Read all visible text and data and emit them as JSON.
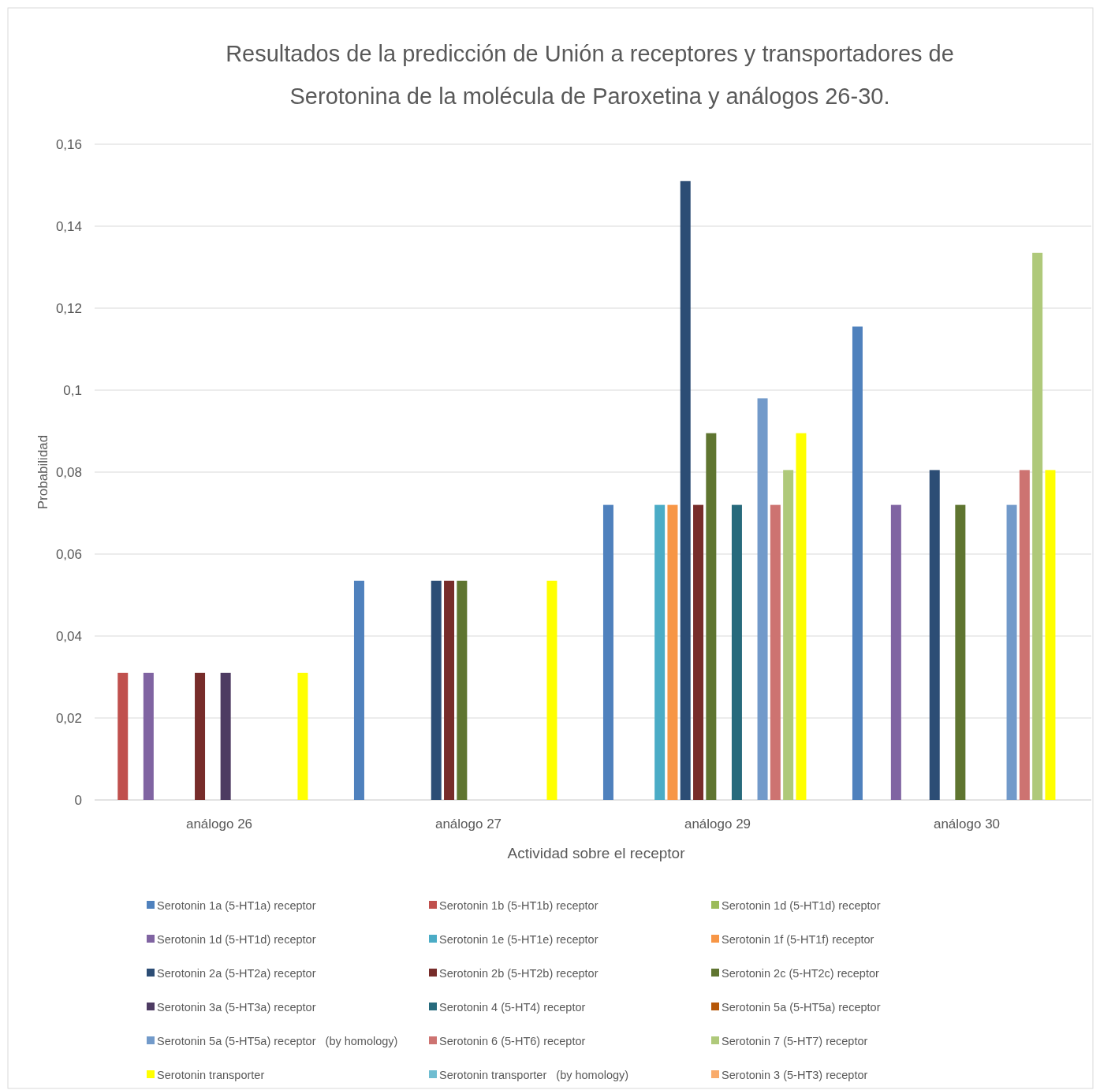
{
  "chart_data": {
    "type": "bar",
    "title": "Resultados de la predicción de Unión  a receptores y transportadores de Serotonina de la molécula de Paroxetina y análogos 26-30.",
    "xlabel": "Actividad sobre el receptor",
    "ylabel": "Probabilidad",
    "categories": [
      "análogo 26",
      "análogo 27",
      "análogo 29",
      "análogo 30"
    ],
    "ylim": [
      0,
      0.16
    ],
    "yticks": [
      0,
      {
        "value": 0.02,
        "label": "0,02"
      },
      {
        "value": 0.04,
        "label": "0,04"
      },
      {
        "value": 0.06,
        "label": "0,06"
      },
      {
        "value": 0.08,
        "label": "0,08"
      },
      {
        "value": 0.1,
        "label": "0,1"
      },
      {
        "value": 0.12,
        "label": "0,12"
      },
      {
        "value": 0.14,
        "label": "0,14"
      },
      {
        "value": 0.16,
        "label": "0,16"
      }
    ],
    "grid": "y",
    "legend": "bottom",
    "series": [
      {
        "name": "Serotonin 1a (5-HT1a) receptor",
        "color": "#4f81bd",
        "values": [
          null,
          0.0535,
          0.072,
          0.1155
        ]
      },
      {
        "name": "Serotonin 1b (5-HT1b) receptor",
        "color": "#c0504d",
        "values": [
          0.031,
          null,
          null,
          null
        ]
      },
      {
        "name": "Serotonin 1d (5-HT1d) receptor",
        "color": "#9bbb59",
        "values": [
          null,
          null,
          null,
          null
        ]
      },
      {
        "name": "Serotonin 1d (5-HT1d) receptor",
        "color": "#8064a2",
        "values": [
          0.031,
          null,
          null,
          0.072
        ]
      },
      {
        "name": "Serotonin 1e (5-HT1e) receptor",
        "color": "#4bacc6",
        "values": [
          null,
          null,
          0.072,
          null
        ]
      },
      {
        "name": "Serotonin 1f (5-HT1f) receptor",
        "color": "#f79646",
        "values": [
          null,
          null,
          0.072,
          null
        ]
      },
      {
        "name": "Serotonin 2a (5-HT2a) receptor",
        "color": "#2c4d75",
        "values": [
          null,
          0.0535,
          0.151,
          0.0805
        ]
      },
      {
        "name": "Serotonin 2b (5-HT2b) receptor",
        "color": "#772c2a",
        "values": [
          0.031,
          0.0535,
          0.072,
          null
        ]
      },
      {
        "name": "Serotonin 2c (5-HT2c) receptor",
        "color": "#5f7530",
        "values": [
          null,
          0.0535,
          0.0895,
          0.072
        ]
      },
      {
        "name": "Serotonin 3a (5-HT3a) receptor",
        "color": "#4d3b62",
        "values": [
          0.031,
          null,
          null,
          null
        ]
      },
      {
        "name": "Serotonin 4 (5-HT4) receptor",
        "color": "#276a7c",
        "values": [
          null,
          null,
          0.072,
          null
        ]
      },
      {
        "name": "Serotonin 5a (5-HT5a) receptor",
        "color": "#b65708",
        "values": [
          null,
          null,
          null,
          null
        ]
      },
      {
        "name": "Serotonin 5a (5-HT5a) receptor   (by homology)",
        "color": "#729aca",
        "values": [
          null,
          null,
          0.098,
          0.072
        ]
      },
      {
        "name": "Serotonin 6 (5-HT6) receptor",
        "color": "#cd7371",
        "values": [
          null,
          null,
          0.072,
          0.0805
        ]
      },
      {
        "name": "Serotonin 7 (5-HT7) receptor",
        "color": "#afc97a",
        "values": [
          null,
          null,
          0.0805,
          0.1335
        ]
      },
      {
        "name": "Serotonin transporter",
        "color": "#ffff00",
        "values": [
          0.031,
          0.0535,
          0.0895,
          0.0805
        ]
      },
      {
        "name": "Serotonin transporter   (by homology)",
        "color": "#6fbdd1",
        "values": [
          null,
          null,
          null,
          null
        ]
      },
      {
        "name": "Serotonin 3 (5-HT3) receptor",
        "color": "#f9ab6b",
        "values": [
          null,
          null,
          null,
          null
        ]
      }
    ]
  }
}
